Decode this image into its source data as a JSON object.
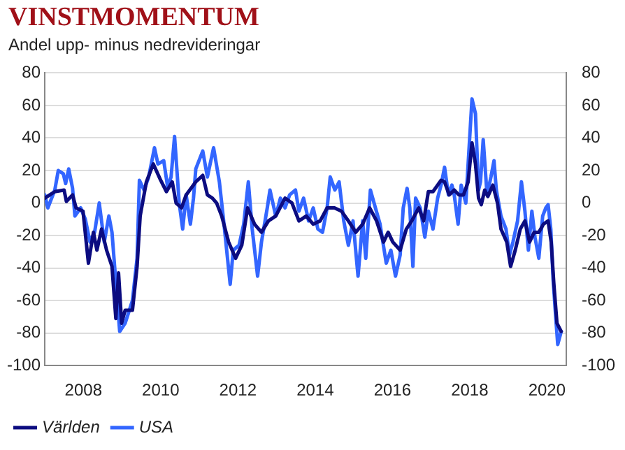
{
  "chart_data": {
    "type": "line",
    "title": "VINSTMOMENTUM",
    "subtitle": "Andel upp- minus nedrevideringar",
    "xlim": [
      2007,
      2020.5
    ],
    "xticks": [
      2008,
      2010,
      2012,
      2014,
      2016,
      2018,
      2020
    ],
    "ylim": [
      -100,
      80
    ],
    "yticks": [
      -100,
      -80,
      -60,
      -40,
      -20,
      0,
      20,
      40,
      60,
      80
    ],
    "y2lim": [
      -100,
      80
    ],
    "y2ticks": [
      -100,
      -80,
      -60,
      -40,
      -20,
      0,
      20,
      40,
      60,
      80
    ],
    "grid": "y",
    "legend": "bottom",
    "marker": "none",
    "line_style": "solid",
    "series": [
      {
        "name": "Världen",
        "color": "#0c0c80",
        "x": [
          2007.0,
          2007.26,
          2007.5,
          2007.56,
          2007.72,
          2007.81,
          2007.99,
          2008.13,
          2008.26,
          2008.35,
          2008.47,
          2008.6,
          2008.74,
          2008.84,
          2008.91,
          2008.99,
          2009.08,
          2009.27,
          2009.39,
          2009.47,
          2009.63,
          2009.81,
          2010.0,
          2010.15,
          2010.3,
          2010.4,
          2010.54,
          2010.66,
          2010.91,
          2011.09,
          2011.21,
          2011.34,
          2011.45,
          2011.58,
          2011.76,
          2011.94,
          2012.1,
          2012.25,
          2012.43,
          2012.61,
          2012.79,
          2012.98,
          2013.22,
          2013.4,
          2013.58,
          2013.77,
          2013.95,
          2014.13,
          2014.31,
          2014.5,
          2014.68,
          2014.86,
          2015.05,
          2015.23,
          2015.41,
          2015.59,
          2015.77,
          2015.89,
          2016.01,
          2016.2,
          2016.36,
          2016.5,
          2016.68,
          2016.81,
          2016.93,
          2017.05,
          2017.17,
          2017.26,
          2017.35,
          2017.47,
          2017.6,
          2017.72,
          2017.84,
          2017.96,
          2018.06,
          2018.15,
          2018.23,
          2018.3,
          2018.39,
          2018.47,
          2018.6,
          2018.72,
          2018.81,
          2018.96,
          2019.06,
          2019.18,
          2019.31,
          2019.43,
          2019.55,
          2019.67,
          2019.79,
          2019.91,
          2020.03,
          2020.11,
          2020.18,
          2020.26,
          2020.37
        ],
        "values": [
          3,
          7,
          8,
          1,
          5,
          -3,
          -5,
          -37,
          -18,
          -29,
          -16,
          -29,
          -39,
          -71,
          -43,
          -74,
          -66,
          -66,
          -39,
          -8,
          13,
          24,
          14,
          7,
          13,
          0,
          -3,
          5,
          13,
          17,
          5,
          3,
          0,
          -8,
          -24,
          -34,
          -26,
          -3,
          -13,
          -18,
          -11,
          -8,
          3,
          0,
          -11,
          -8,
          -13,
          -11,
          -3,
          -3,
          -5,
          -11,
          -18,
          -13,
          -3,
          -11,
          -24,
          -18,
          -24,
          -29,
          -16,
          -11,
          -3,
          -11,
          7,
          7,
          11,
          14,
          13,
          5,
          8,
          5,
          5,
          13,
          37,
          24,
          3,
          -1,
          8,
          4,
          11,
          0,
          -16,
          -24,
          -39,
          -29,
          -16,
          -11,
          -24,
          -18,
          -18,
          -13,
          -11,
          -24,
          -50,
          -74,
          -79
        ]
      },
      {
        "name": "USA",
        "color": "#3366ff",
        "x": [
          2007.0,
          2007.08,
          2007.26,
          2007.35,
          2007.48,
          2007.54,
          2007.62,
          2007.72,
          2007.78,
          2007.93,
          2008.05,
          2008.17,
          2008.29,
          2008.41,
          2008.54,
          2008.66,
          2008.74,
          2008.86,
          2008.94,
          2009.08,
          2009.27,
          2009.39,
          2009.45,
          2009.57,
          2009.69,
          2009.84,
          2009.93,
          2010.08,
          2010.18,
          2010.27,
          2010.36,
          2010.48,
          2010.57,
          2010.66,
          2010.77,
          2010.85,
          2010.91,
          2011.09,
          2011.21,
          2011.37,
          2011.52,
          2011.64,
          2011.8,
          2011.88,
          2012.03,
          2012.15,
          2012.27,
          2012.37,
          2012.51,
          2012.61,
          2012.76,
          2012.83,
          2012.98,
          2013.1,
          2013.22,
          2013.34,
          2013.49,
          2013.58,
          2013.7,
          2013.83,
          2013.95,
          2014.07,
          2014.19,
          2014.31,
          2014.39,
          2014.51,
          2014.62,
          2014.74,
          2014.86,
          2014.98,
          2015.11,
          2015.23,
          2015.31,
          2015.43,
          2015.56,
          2015.68,
          2015.84,
          2015.96,
          2016.08,
          2016.2,
          2016.28,
          2016.38,
          2016.45,
          2016.53,
          2016.6,
          2016.72,
          2016.84,
          2016.93,
          2017.05,
          2017.17,
          2017.26,
          2017.35,
          2017.45,
          2017.54,
          2017.6,
          2017.7,
          2017.78,
          2017.9,
          2017.96,
          2018.06,
          2018.15,
          2018.23,
          2018.28,
          2018.35,
          2018.45,
          2018.55,
          2018.63,
          2018.69,
          2018.81,
          2018.94,
          2019.03,
          2019.12,
          2019.24,
          2019.34,
          2019.43,
          2019.52,
          2019.61,
          2019.69,
          2019.79,
          2019.89,
          2019.97,
          2020.03,
          2020.1,
          2020.16,
          2020.23,
          2020.28,
          2020.37
        ],
        "values": [
          5,
          -3,
          8,
          20,
          18,
          12,
          21,
          9,
          -8,
          -3,
          -10,
          -24,
          -18,
          0,
          -24,
          -8,
          -18,
          -55,
          -79,
          -74,
          -60,
          -34,
          14,
          8,
          16,
          34,
          24,
          26,
          10,
          16,
          41,
          0,
          -16,
          5,
          -13,
          3,
          21,
          32,
          16,
          34,
          13,
          -13,
          -50,
          -29,
          -26,
          -13,
          13,
          -16,
          -45,
          -24,
          -3,
          8,
          -8,
          3,
          -3,
          5,
          8,
          -5,
          3,
          -11,
          -3,
          -16,
          -18,
          -3,
          16,
          8,
          13,
          -11,
          -26,
          -11,
          -45,
          -11,
          -34,
          8,
          -3,
          -13,
          -37,
          -29,
          -45,
          -32,
          -3,
          9,
          -3,
          -39,
          3,
          -3,
          -21,
          -5,
          -16,
          3,
          11,
          22,
          5,
          11,
          5,
          -13,
          11,
          0,
          24,
          64,
          55,
          8,
          13,
          39,
          5,
          16,
          26,
          8,
          -8,
          -16,
          -32,
          -24,
          -11,
          13,
          -5,
          -29,
          -5,
          -21,
          -34,
          -8,
          -3,
          -1,
          -16,
          -47,
          -71,
          -87,
          -79
        ]
      }
    ]
  }
}
